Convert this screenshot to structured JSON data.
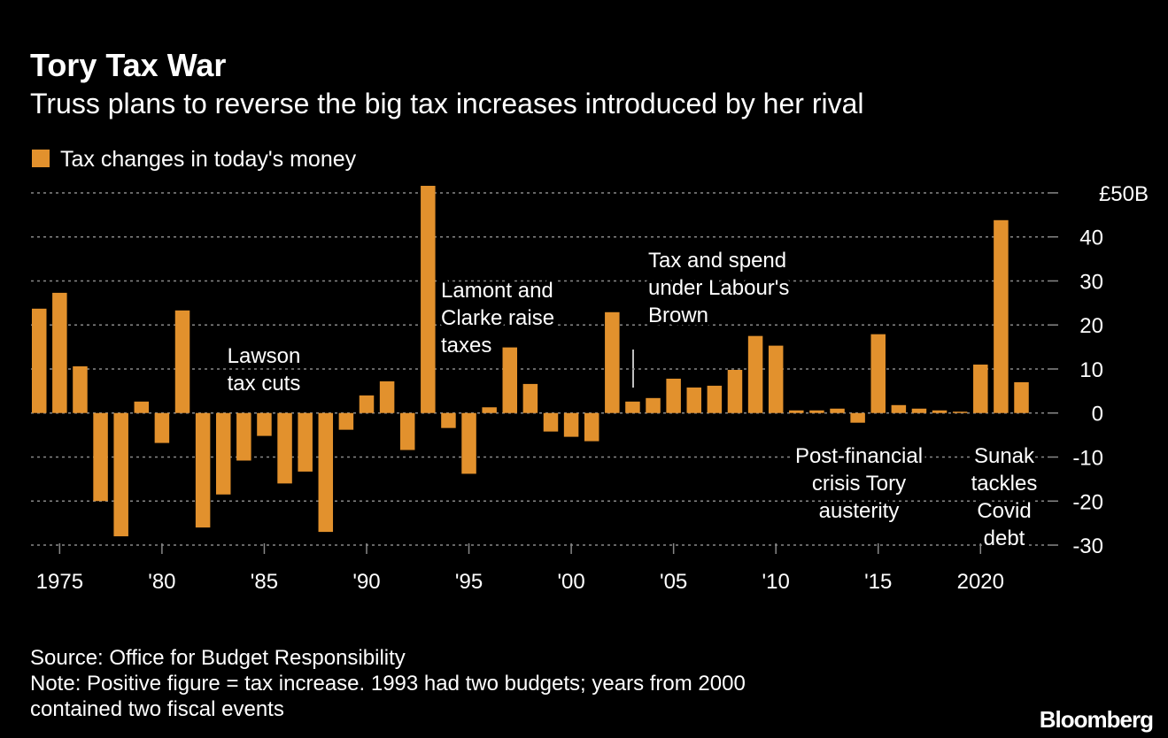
{
  "chart_data": {
    "type": "bar",
    "title": "Tory Tax War",
    "subtitle": "Truss plans to reverse the big tax increases introduced by her rival",
    "x": [
      1974,
      1975,
      1976,
      1977,
      1978,
      1979,
      1980,
      1981,
      1982,
      1983,
      1984,
      1985,
      1986,
      1987,
      1988,
      1989,
      1990,
      1991,
      1992,
      1993,
      1994,
      1995,
      1996,
      1997,
      1998,
      1999,
      2000,
      2001,
      2002,
      2003,
      2004,
      2005,
      2006,
      2007,
      2008,
      2009,
      2010,
      2011,
      2012,
      2013,
      2014,
      2015,
      2016,
      2017,
      2018,
      2019,
      2020,
      2021,
      2022
    ],
    "series": [
      {
        "name": "Tax changes in today's money",
        "color": "#e2912d",
        "values": [
          23.7,
          27.3,
          10.6,
          -20,
          -28,
          2.6,
          -6.8,
          23.3,
          -26,
          -18.5,
          -10.8,
          -5.2,
          -16,
          -13.3,
          -27,
          -3.8,
          4,
          7.2,
          -8.4,
          51.6,
          -3.4,
          -13.8,
          1.3,
          14.9,
          6.6,
          -4.2,
          -5.4,
          -6.4,
          22.9,
          2.6,
          3.4,
          7.8,
          5.8,
          6.2,
          9.8,
          17.5,
          15.3,
          0.6,
          0.6,
          1,
          -2.2,
          17.9,
          1.8,
          1,
          0.6,
          0.3,
          11,
          43.8,
          7
        ]
      }
    ],
    "xlim": [
      1973.6,
      2022.8
    ],
    "xticks": [
      1975,
      {
        "value": 1980,
        "label": "'80"
      },
      {
        "value": 1985,
        "label": "'85"
      },
      {
        "value": 1990,
        "label": "'90"
      },
      {
        "value": 1995,
        "label": "'95"
      },
      {
        "value": 2000,
        "label": "'00"
      },
      {
        "value": 2005,
        "label": "'05"
      },
      {
        "value": 2010,
        "label": "'10"
      },
      {
        "value": 2015,
        "label": "'15"
      },
      2020
    ],
    "ylim": [
      -31,
      52
    ],
    "yticks": [
      -30,
      -20,
      -10,
      0,
      10,
      20,
      30,
      40,
      {
        "value": 50,
        "label": "£50B"
      }
    ],
    "grid": true,
    "annotations": [
      {
        "text": [
          "Lawson",
          "tax cuts"
        ]
      },
      {
        "text": [
          "Lamont and",
          "Clarke raise",
          "taxes"
        ]
      },
      {
        "text": [
          "Tax and spend",
          "under Labour's",
          "Brown"
        ]
      },
      {
        "text": [
          "Post-financial",
          "crisis Tory",
          "austerity"
        ]
      },
      {
        "text": [
          "Sunak",
          "tackles",
          "Covid",
          "debt"
        ]
      }
    ],
    "source": "Source: Office for Budget Responsibility",
    "note": [
      "Note: Positive figure = tax increase. 1993 had two budgets; years from 2000",
      "contained two fiscal events"
    ],
    "brand": "Bloomberg"
  }
}
